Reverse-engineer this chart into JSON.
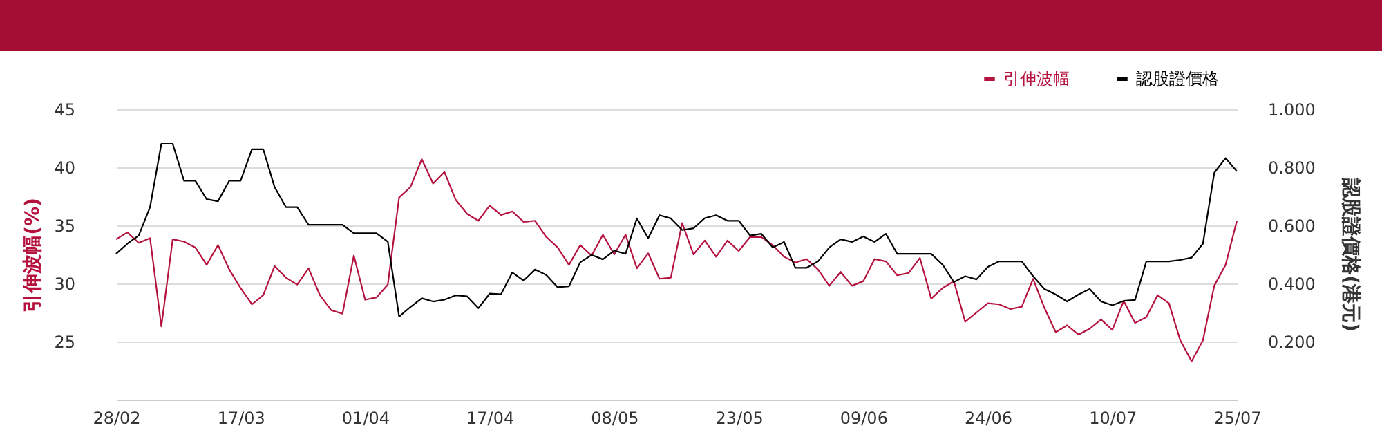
{
  "chart_data": {
    "type": "line",
    "categories": [
      "28/02",
      null,
      null,
      null,
      null,
      null,
      null,
      null,
      null,
      null,
      null,
      "17/03",
      null,
      null,
      null,
      null,
      null,
      null,
      null,
      null,
      null,
      null,
      "01/04",
      null,
      null,
      null,
      null,
      null,
      null,
      null,
      null,
      null,
      null,
      "17/04",
      null,
      null,
      null,
      null,
      null,
      null,
      null,
      null,
      null,
      null,
      "08/05",
      null,
      null,
      null,
      null,
      null,
      null,
      null,
      null,
      null,
      null,
      "23/05",
      null,
      null,
      null,
      null,
      null,
      null,
      null,
      null,
      null,
      null,
      "09/06",
      null,
      null,
      null,
      null,
      null,
      null,
      null,
      null,
      null,
      null,
      "24/06",
      null,
      null,
      null,
      null,
      null,
      null,
      null,
      null,
      null,
      null,
      "10/07",
      null,
      null,
      null,
      null,
      null,
      null,
      null,
      null,
      null,
      null,
      "25/07"
    ],
    "series": [
      {
        "name": "引伸波幅",
        "color": "#b5123e",
        "values": [
          33.8,
          34.4,
          33.5,
          33.9,
          26.3,
          33.8,
          33.6,
          33.1,
          31.6,
          33.3,
          31.2,
          29.6,
          28.2,
          29.0,
          31.5,
          30.5,
          29.9,
          31.3,
          29.0,
          27.7,
          27.4,
          32.4,
          28.6,
          28.8,
          29.9,
          37.4,
          38.3,
          40.7,
          38.6,
          39.6,
          37.2,
          36.0,
          35.4,
          36.7,
          35.9,
          36.2,
          35.3,
          35.4,
          34.0,
          33.1,
          31.6,
          33.3,
          32.4,
          34.2,
          32.5,
          34.2,
          31.3,
          32.6,
          30.4,
          30.5,
          35.2,
          32.5,
          33.7,
          32.3,
          33.7,
          32.8,
          34.0,
          34.0,
          33.3,
          32.3,
          31.8,
          32.1,
          31.2,
          29.8,
          31.0,
          29.8,
          30.2,
          32.1,
          31.9,
          30.7,
          30.9,
          32.2,
          28.7,
          29.6,
          30.2,
          26.7,
          27.5,
          28.3,
          28.2,
          27.8,
          28.0,
          30.4,
          27.9,
          25.8,
          26.4,
          25.6,
          26.1,
          26.9,
          26.0,
          28.5,
          26.6,
          27.1,
          29.0,
          28.3,
          25.1,
          23.3,
          25.1,
          29.8,
          31.6,
          35.4
        ]
      },
      {
        "name": "認股證價格",
        "color": "#000000",
        "axis": "y2",
        "values": [
          0.502,
          0.537,
          0.565,
          0.663,
          0.881,
          0.881,
          0.754,
          0.754,
          0.69,
          0.683,
          0.754,
          0.754,
          0.862,
          0.862,
          0.732,
          0.663,
          0.663,
          0.602,
          0.602,
          0.602,
          0.602,
          0.573,
          0.573,
          0.573,
          0.544,
          0.286,
          0.319,
          0.349,
          0.338,
          0.344,
          0.359,
          0.356,
          0.315,
          0.365,
          0.363,
          0.438,
          0.41,
          0.448,
          0.429,
          0.387,
          0.39,
          0.473,
          0.498,
          0.483,
          0.513,
          0.502,
          0.624,
          0.556,
          0.635,
          0.624,
          0.584,
          0.59,
          0.625,
          0.635,
          0.616,
          0.616,
          0.565,
          0.571,
          0.524,
          0.543,
          0.454,
          0.454,
          0.476,
          0.524,
          0.552,
          0.543,
          0.562,
          0.543,
          0.571,
          0.502,
          0.502,
          0.502,
          0.502,
          0.465,
          0.405,
          0.425,
          0.414,
          0.457,
          0.476,
          0.476,
          0.476,
          0.425,
          0.381,
          0.362,
          0.338,
          0.362,
          0.381,
          0.338,
          0.325,
          0.34,
          0.343,
          0.476,
          0.476,
          0.476,
          0.481,
          0.489,
          0.537,
          0.781,
          0.832,
          0.786
        ]
      }
    ],
    "ylabel": "引伸波幅(%)",
    "y2label": "認股證價格(港元)",
    "ylim": [
      20,
      45
    ],
    "yticks": [
      25,
      30,
      35,
      40,
      45
    ],
    "y2lim": [
      0,
      1
    ],
    "y2ticks": [
      {
        "value": 0.2,
        "label": "0.200"
      },
      {
        "value": 0.4,
        "label": "0.400"
      },
      {
        "value": 0.6,
        "label": "0.600"
      },
      {
        "value": 0.8,
        "label": "0.800"
      },
      {
        "value": 1,
        "label": "1.000"
      }
    ],
    "grid": "y",
    "legend": "top right",
    "marker": "none",
    "line_style": "solid"
  }
}
